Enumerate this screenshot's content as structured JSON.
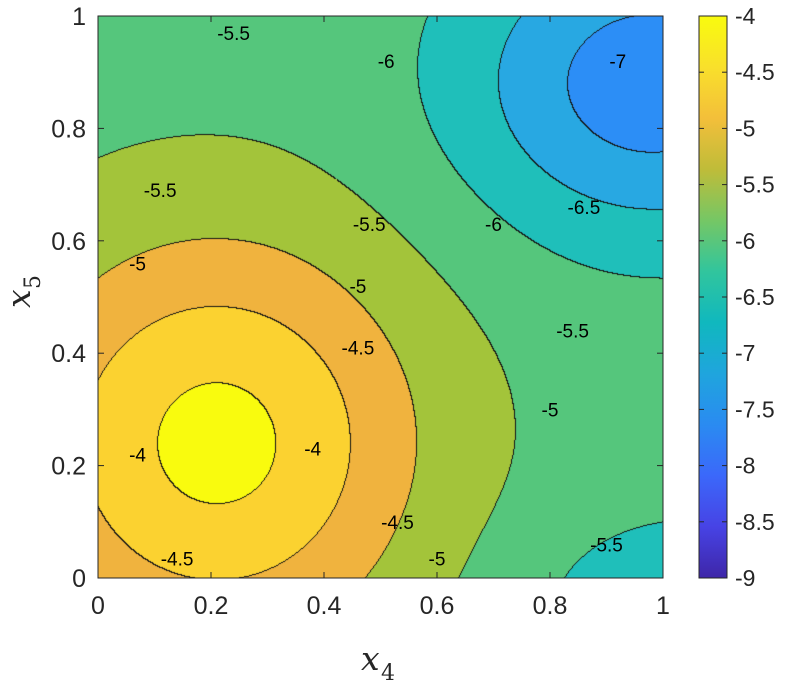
{
  "chart_data": {
    "type": "contour",
    "title": "",
    "xlabel": {
      "base": "x",
      "sub": "4"
    },
    "ylabel": {
      "base": "x",
      "sub": "5"
    },
    "xlim": [
      0,
      1
    ],
    "ylim": [
      0,
      1
    ],
    "xticks": [
      0,
      0.2,
      0.4,
      0.6,
      0.8,
      1
    ],
    "yticks": [
      0,
      0.2,
      0.4,
      0.6,
      0.8,
      1
    ],
    "xtick_labels": [
      "0",
      "0.2",
      "0.4",
      "0.6",
      "0.8",
      "1"
    ],
    "ytick_labels": [
      "0",
      "0.2",
      "0.4",
      "0.6",
      "0.8",
      "1"
    ],
    "colorbar": {
      "clim": [
        -9,
        -4
      ],
      "ticks": [
        -4,
        -4.5,
        -5,
        -5.5,
        -6,
        -6.5,
        -7,
        -7.5,
        -8,
        -8.5,
        -9
      ],
      "tick_labels": [
        "-4",
        "-4.5",
        "-5",
        "-5.5",
        "-6",
        "-6.5",
        "-7",
        "-7.5",
        "-8",
        "-8.5",
        "-9"
      ],
      "colormap": "parula"
    },
    "levels": [
      -7,
      -6.5,
      -6,
      -5.5,
      -5,
      -4.5,
      -4
    ],
    "band_colors": {
      "-4": "#f9fb0e",
      "-4.5": "#fbd230",
      "-5": "#f0b33e",
      "-5.5": "#a3c43a",
      "-6": "#55c67c",
      "-6.5": "#1fbfba",
      "-7": "#28a8e2",
      "-7.5": "#2c8ef6"
    },
    "contour_labels": [
      {
        "text": "-5.5",
        "x": 0.24,
        "y": 0.97
      },
      {
        "text": "-6",
        "x": 0.51,
        "y": 0.92
      },
      {
        "text": "-7",
        "x": 0.92,
        "y": 0.92
      },
      {
        "text": "-5.5",
        "x": 0.11,
        "y": 0.69
      },
      {
        "text": "-5.5",
        "x": 0.48,
        "y": 0.63
      },
      {
        "text": "-6",
        "x": 0.7,
        "y": 0.63
      },
      {
        "text": "-6.5",
        "x": 0.86,
        "y": 0.66
      },
      {
        "text": "-5",
        "x": 0.07,
        "y": 0.56
      },
      {
        "text": "-5",
        "x": 0.46,
        "y": 0.52
      },
      {
        "text": "-5.5",
        "x": 0.84,
        "y": 0.44
      },
      {
        "text": "-4.5",
        "x": 0.46,
        "y": 0.41
      },
      {
        "text": "-5",
        "x": 0.8,
        "y": 0.3
      },
      {
        "text": "-4",
        "x": 0.07,
        "y": 0.22
      },
      {
        "text": "-4",
        "x": 0.38,
        "y": 0.23
      },
      {
        "text": "-4.5",
        "x": 0.53,
        "y": 0.1
      },
      {
        "text": "-4.5",
        "x": 0.14,
        "y": 0.035
      },
      {
        "text": "-5",
        "x": 0.6,
        "y": 0.035
      },
      {
        "text": "-5.5",
        "x": 0.9,
        "y": 0.06
      }
    ]
  }
}
